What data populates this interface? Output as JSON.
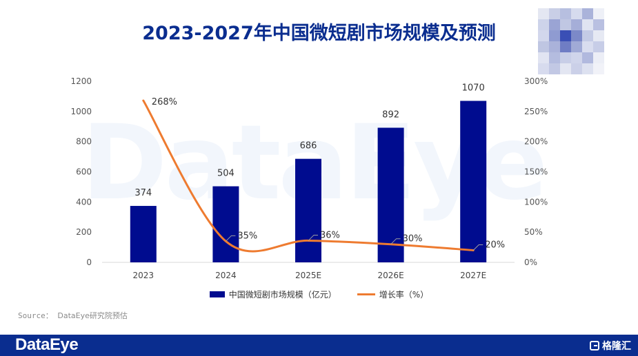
{
  "title": "2023-2027年中国微短剧市场规模及预测",
  "source_label": "Source：",
  "source_text": "DataEye研究院预估",
  "footer": {
    "logo": "DataEye",
    "brand": "格隆汇"
  },
  "watermark": "DataEye",
  "colors": {
    "bar": "#000c8f",
    "line": "#ee7b30",
    "title": "#0a2d8f",
    "footer": "#0a2d8f"
  },
  "chart_data": {
    "type": "bar",
    "categories": [
      "2023",
      "2024",
      "2025E",
      "2026E",
      "2027E"
    ],
    "series": [
      {
        "name": "中国微短剧市场规模（亿元）",
        "type": "bar",
        "axis": "left",
        "values": [
          374,
          504,
          686,
          892,
          1070
        ]
      },
      {
        "name": "增长率（%）",
        "type": "line",
        "axis": "right",
        "values": [
          268,
          35,
          36,
          30,
          20
        ]
      }
    ],
    "y_left": {
      "min": 0,
      "max": 1200,
      "ticks": [
        0,
        200,
        400,
        600,
        800,
        1000,
        1200
      ]
    },
    "y_right": {
      "min": 0,
      "max": 300,
      "ticks": [
        "0%",
        "50%",
        "100%",
        "150%",
        "200%",
        "250%",
        "300%"
      ]
    },
    "bar_labels": [
      "374",
      "504",
      "686",
      "892",
      "1070"
    ],
    "line_labels": [
      "268%",
      "35%",
      "36%",
      "30%",
      "20%"
    ],
    "legend": "bottom",
    "grid": false
  }
}
